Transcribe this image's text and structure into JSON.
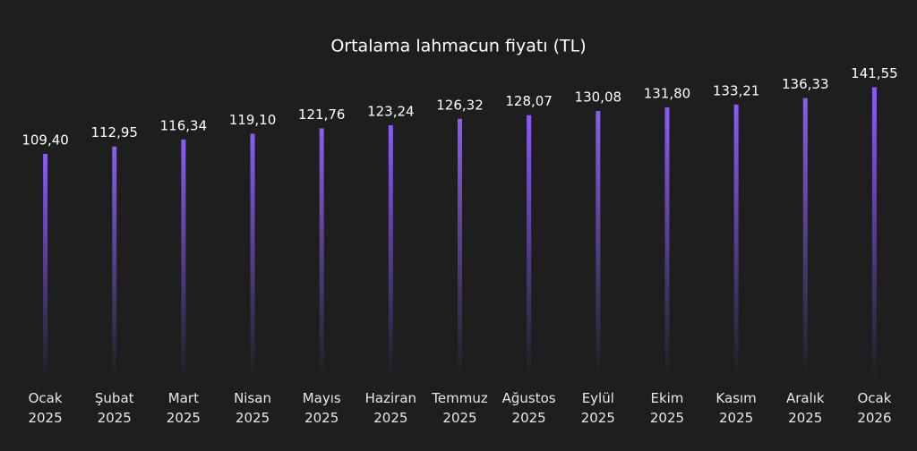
{
  "chart_data": {
    "type": "bar",
    "title": "Ortalama lahmacun fiyatı (TL)",
    "categories": [
      "Ocak 2025",
      "Şubat 2025",
      "Mart 2025",
      "Nisan 2025",
      "Mayıs 2025",
      "Haziran 2025",
      "Temmuz 2025",
      "Ağustos 2025",
      "Eylül 2025",
      "Ekim 2025",
      "Kasım 2025",
      "Aralık 2025",
      "Ocak 2026"
    ],
    "values": [
      109.4,
      112.95,
      116.34,
      119.1,
      121.76,
      123.24,
      126.32,
      128.07,
      130.08,
      131.8,
      133.21,
      136.33,
      141.55
    ],
    "value_labels": [
      "109,40",
      "112,95",
      "116,34",
      "119,10",
      "121,76",
      "123,24",
      "126,32",
      "128,07",
      "130,08",
      "131,80",
      "133,21",
      "136,33",
      "141,55"
    ],
    "color": "#8b5cf6",
    "ylim": [
      0,
      150
    ]
  }
}
